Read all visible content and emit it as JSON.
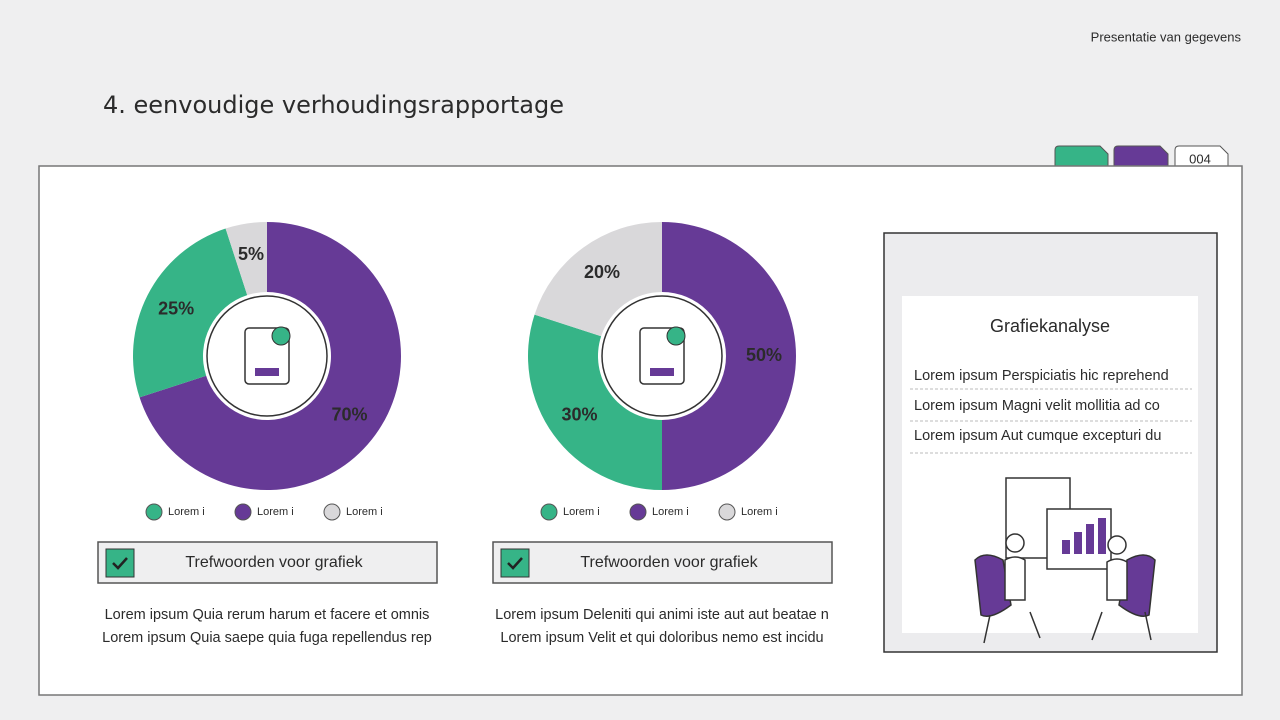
{
  "header": {
    "label": "Presentatie van gegevens",
    "title": "4. eenvoudige verhoudingsrapportage",
    "page": "004"
  },
  "chart_data": [
    {
      "type": "pie",
      "categories": [
        "Lorem i",
        "Lorem i",
        "Lorem i"
      ],
      "values": [
        70,
        25,
        5
      ],
      "value_labels": [
        "70%",
        "25%",
        "5%"
      ],
      "colors": [
        "#663a96",
        "#36b487",
        "#d9d8da"
      ]
    },
    {
      "type": "pie",
      "categories": [
        "Lorem i",
        "Lorem i",
        "Lorem i"
      ],
      "values": [
        50,
        30,
        20
      ],
      "value_labels": [
        "50%",
        "30%",
        "20%"
      ],
      "colors": [
        "#663a96",
        "#36b487",
        "#d9d8da"
      ]
    }
  ],
  "cards": [
    {
      "keyword": "Trefwoorden voor grafiek",
      "lines": [
        "Lorem ipsum Quia rerum harum et facere et omnis",
        "Lorem ipsum Quia saepe quia fuga repellendus rep"
      ]
    },
    {
      "keyword": "Trefwoorden voor grafiek",
      "lines": [
        "Lorem ipsum Deleniti qui animi iste aut aut beatae n",
        "Lorem ipsum Velit et qui doloribus nemo est incidu"
      ]
    }
  ],
  "panel": {
    "title": "Grafiekanalyse",
    "lines": [
      "Lorem ipsum Perspiciatis hic reprehend",
      "Lorem ipsum Magni velit mollitia ad co",
      "Lorem ipsum Aut cumque excepturi du"
    ]
  }
}
